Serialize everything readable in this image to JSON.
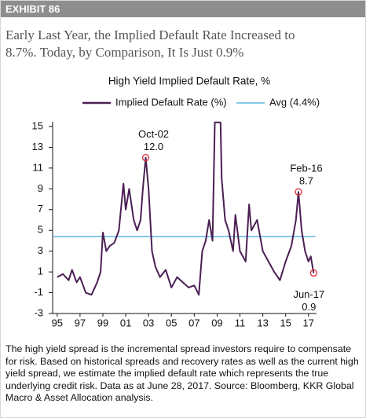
{
  "header": {
    "exhibit": "EXHIBIT 86",
    "title_lines": [
      "Early Last Year, the Implied Default Rate Increased to",
      "8.7%.  Today, by Comparison, It Is Just 0.9%"
    ]
  },
  "chart_data": {
    "type": "line",
    "title": "High Yield Implied Default Rate, %",
    "x": [
      1995.0,
      1995.5,
      1996.0,
      1996.3,
      1996.7,
      1997.0,
      1997.5,
      1998.0,
      1998.5,
      1998.8,
      1999.0,
      1999.3,
      1999.6,
      2000.0,
      2000.4,
      2000.8,
      2001.0,
      2001.3,
      2001.7,
      2002.0,
      2002.3,
      2002.5,
      2002.75,
      2003.0,
      2003.3,
      2003.6,
      2004.0,
      2004.5,
      2005.0,
      2005.5,
      2006.0,
      2006.5,
      2007.0,
      2007.4,
      2007.7,
      2008.0,
      2008.3,
      2008.6,
      2008.8,
      2009.3,
      2009.4,
      2009.7,
      2010.0,
      2010.4,
      2010.6,
      2011.0,
      2011.5,
      2011.8,
      2012.0,
      2012.5,
      2013.0,
      2013.5,
      2014.0,
      2014.5,
      2015.0,
      2015.5,
      2015.9,
      2016.12,
      2016.4,
      2016.7,
      2017.0,
      2017.2,
      2017.45
    ],
    "series": [
      {
        "name": "Implied Default Rate (%)",
        "color": "#4b1f54",
        "values": [
          0.5,
          0.8,
          0.2,
          1.2,
          0.0,
          0.5,
          -1.0,
          -1.2,
          0.0,
          1.0,
          4.8,
          3.0,
          3.5,
          3.8,
          5.0,
          9.5,
          7.0,
          9.0,
          6.0,
          5.0,
          6.0,
          9.0,
          12.0,
          9.0,
          3.0,
          1.5,
          0.5,
          1.2,
          -0.5,
          0.5,
          0.0,
          -0.5,
          -0.3,
          -1.2,
          3.0,
          4.0,
          6.0,
          4.0,
          15.4,
          15.4,
          10.0,
          6.0,
          5.0,
          3.0,
          6.5,
          3.0,
          2.0,
          7.5,
          5.0,
          6.0,
          3.0,
          2.0,
          1.0,
          0.2,
          2.0,
          3.5,
          6.0,
          8.7,
          5.0,
          3.0,
          2.0,
          2.5,
          0.9
        ]
      }
    ],
    "reference_lines": [
      {
        "name": "Avg (4.4%)",
        "value": 4.4,
        "color": "#5bb8e0"
      }
    ],
    "annotations": [
      {
        "label": "Oct-02",
        "x": 2002.75,
        "value": 12.0,
        "value_label": "12.0"
      },
      {
        "label": "Feb-16",
        "x": 2016.12,
        "value": 8.7,
        "value_label": "8.7"
      },
      {
        "label": "Jun-17",
        "x": 2017.45,
        "value": 0.9,
        "value_label": "0.9"
      }
    ],
    "marker_color": "#e0303a",
    "xlim": [
      1994.6,
      2017.6
    ],
    "xticks": [
      {
        "value": 1995,
        "label": "95"
      },
      {
        "value": 1997,
        "label": "97"
      },
      {
        "value": 1999,
        "label": "99"
      },
      {
        "value": 2001,
        "label": "01"
      },
      {
        "value": 2003,
        "label": "03"
      },
      {
        "value": 2005,
        "label": "05"
      },
      {
        "value": 2007,
        "label": "07"
      },
      {
        "value": 2009,
        "label": "09"
      },
      {
        "value": 2011,
        "label": "11"
      },
      {
        "value": 2013,
        "label": "13"
      },
      {
        "value": 2015,
        "label": "15"
      },
      {
        "value": 2017,
        "label": "17"
      }
    ],
    "ylim": [
      -3,
      15.4
    ],
    "yticks": [
      -3,
      -1,
      1,
      3,
      5,
      7,
      9,
      11,
      13,
      15
    ],
    "grid": false
  },
  "footer": "The high yield spread is the incremental spread investors require to compensate for risk. Based on historical spreads and recovery rates as well as the current high yield spread, we estimate the implied default rate which represents the true underlying credit risk. Data as at June 28, 2017. Source: Bloomberg, KKR Global Macro & Asset Allocation analysis."
}
